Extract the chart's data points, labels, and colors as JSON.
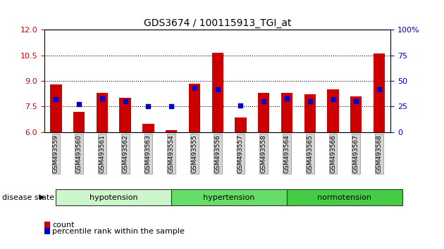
{
  "title": "GDS3674 / 100115913_TGI_at",
  "samples": [
    "GSM493559",
    "GSM493560",
    "GSM493561",
    "GSM493562",
    "GSM493563",
    "GSM493554",
    "GSM493555",
    "GSM493556",
    "GSM493557",
    "GSM493558",
    "GSM493564",
    "GSM493565",
    "GSM493566",
    "GSM493567",
    "GSM493568"
  ],
  "count_values": [
    8.8,
    7.2,
    8.3,
    8.0,
    6.5,
    6.1,
    8.85,
    10.65,
    6.85,
    8.3,
    8.3,
    8.2,
    8.5,
    8.1,
    10.6
  ],
  "percentile_values": [
    32,
    27,
    33,
    30,
    25,
    25,
    43,
    42,
    26,
    30,
    33,
    30,
    32,
    30,
    42
  ],
  "ylim_left": [
    6,
    12
  ],
  "ylim_right": [
    0,
    100
  ],
  "yticks_left": [
    6,
    7.5,
    9,
    10.5,
    12
  ],
  "yticks_right": [
    0,
    25,
    50,
    75,
    100
  ],
  "groups": [
    {
      "label": "hypotension",
      "start": 0,
      "end": 5,
      "color": "#ccf5cc"
    },
    {
      "label": "hypertension",
      "start": 5,
      "end": 10,
      "color": "#66dd66"
    },
    {
      "label": "normotension",
      "start": 10,
      "end": 15,
      "color": "#44cc44"
    }
  ],
  "bar_color": "#cc0000",
  "dot_color": "#0000cc",
  "bar_width": 0.5,
  "dot_size": 25,
  "left_tick_color": "#cc0000",
  "right_tick_color": "#0000cc",
  "legend_count_color": "#cc0000",
  "legend_pct_color": "#0000cc",
  "background_color": "#ffffff",
  "plot_bg_color": "#ffffff",
  "base_value": 6.0,
  "tick_label_bg": "#d4d4d4",
  "group_separator_color": "#007700"
}
